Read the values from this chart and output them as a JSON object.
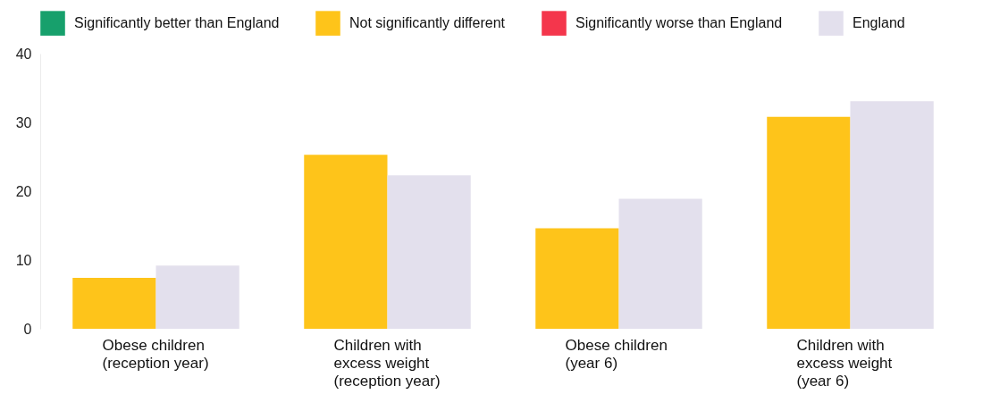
{
  "chart_data": {
    "type": "bar",
    "categories": [
      "Obese children\n(reception year)",
      "Children with\nexcess weight\n(reception year)",
      "Obese children\n(year 6)",
      "Children with\nexcess weight\n(year 6)"
    ],
    "series": [
      {
        "name": "Significantly better than England",
        "color": "#17a06c",
        "values": [
          null,
          null,
          null,
          null
        ]
      },
      {
        "name": "Not significantly different",
        "color": "#fec41a",
        "values": [
          7.4,
          25.3,
          14.6,
          30.8
        ]
      },
      {
        "name": "Significantly worse than England",
        "color": "#f4364c",
        "values": [
          null,
          null,
          null,
          null
        ]
      },
      {
        "name": "England",
        "color": "#e3e0ed",
        "values": [
          9.2,
          22.3,
          18.9,
          33.1
        ]
      }
    ],
    "ylim": [
      0,
      40
    ],
    "yticks": [
      0,
      10,
      20,
      30,
      40
    ],
    "grid": false,
    "legend": "top"
  }
}
